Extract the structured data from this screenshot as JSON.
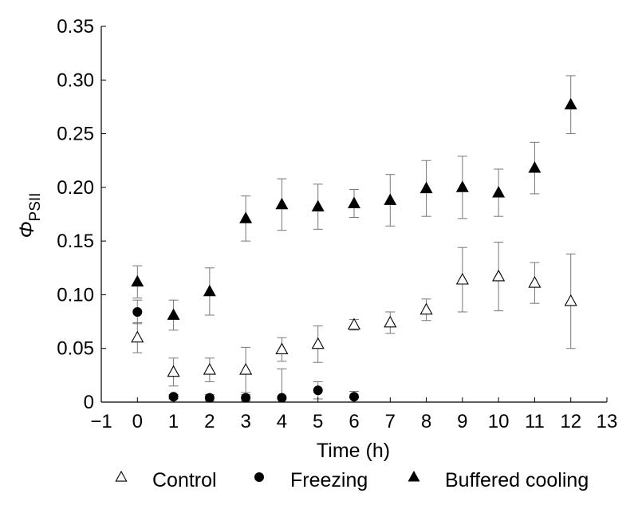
{
  "chart_data": {
    "type": "scatter",
    "xlabel": "Time (h)",
    "ylabel": "Φ",
    "ylabel_sub": "PSII",
    "xlim": [
      -1,
      13
    ],
    "ylim": [
      0,
      0.35
    ],
    "xticks": [
      "−1",
      "0",
      "1",
      "2",
      "3",
      "4",
      "5",
      "6",
      "7",
      "8",
      "9",
      "10",
      "11",
      "12",
      "13"
    ],
    "yticks": [
      "0",
      "0.05",
      "0.10",
      "0.15",
      "0.20",
      "0.25",
      "0.30",
      "0.35"
    ],
    "legend_position": "bottom",
    "series": [
      {
        "name": "Control",
        "marker": "triangle-open",
        "x": [
          0,
          1,
          2,
          3,
          4,
          5,
          6,
          7,
          8,
          9,
          10,
          11,
          12
        ],
        "y": [
          0.06,
          0.028,
          0.03,
          0.03,
          0.049,
          0.054,
          0.072,
          0.074,
          0.086,
          0.114,
          0.117,
          0.111,
          0.094
        ],
        "err": [
          0.014,
          0.013,
          0.011,
          0.021,
          0.011,
          0.017,
          0.005,
          0.01,
          0.01,
          0.03,
          0.032,
          0.019,
          0.044
        ]
      },
      {
        "name": "Freezing",
        "marker": "circle-filled",
        "x": [
          0,
          1,
          2,
          3,
          4,
          5,
          6
        ],
        "y": [
          0.084,
          0.005,
          0.004,
          0.004,
          0.004,
          0.011,
          0.005
        ],
        "err": [
          0.011,
          0.002,
          0.003,
          0.003,
          0.027,
          0.008,
          0.005
        ]
      },
      {
        "name": "Buffered cooling",
        "marker": "triangle-filled",
        "x": [
          0,
          1,
          2,
          3,
          4,
          5,
          6,
          7,
          8,
          9,
          10,
          11,
          12
        ],
        "y": [
          0.112,
          0.081,
          0.103,
          0.171,
          0.184,
          0.182,
          0.185,
          0.188,
          0.199,
          0.2,
          0.195,
          0.218,
          0.277
        ],
        "err": [
          0.015,
          0.014,
          0.022,
          0.021,
          0.024,
          0.021,
          0.013,
          0.024,
          0.026,
          0.029,
          0.022,
          0.024,
          0.027
        ]
      }
    ]
  }
}
